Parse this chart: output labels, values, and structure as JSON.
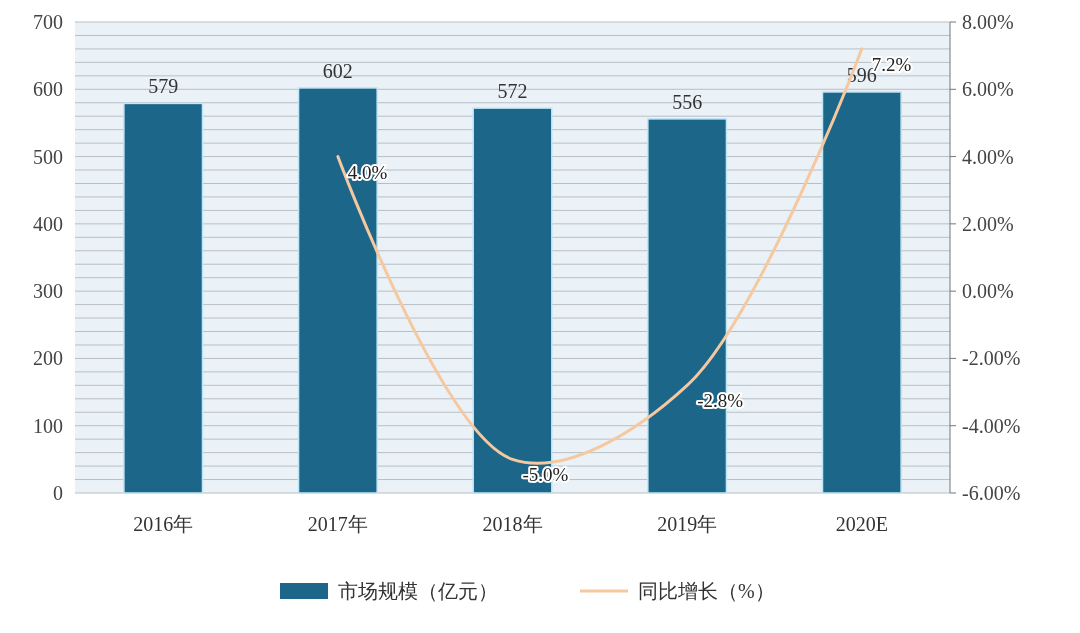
{
  "chart_data": {
    "type": "bar",
    "categories": [
      "2016年",
      "2017年",
      "2018年",
      "2019年",
      "2020E"
    ],
    "series": [
      {
        "name": "市场规模（亿元）",
        "color": "#1b6689",
        "values": [
          579,
          602,
          572,
          556,
          596
        ],
        "value_labels": [
          "579",
          "602",
          "572",
          "556",
          "596"
        ]
      },
      {
        "name": "同比增长（%）",
        "type": "line",
        "axis": "y2",
        "color": "#f5c8a0",
        "values": [
          null,
          4.0,
          -5.0,
          -2.8,
          7.2
        ],
        "value_labels": [
          null,
          "4.0%",
          "-5.0%",
          "-2.8%",
          "7.2%"
        ]
      }
    ],
    "ylim": [
      0,
      700
    ],
    "yticks": [
      0,
      {
        "value": 20,
        "label": null
      },
      {
        "value": 40,
        "label": null
      },
      {
        "value": 60,
        "label": null
      },
      {
        "value": 80,
        "label": null
      },
      100,
      {
        "value": 120,
        "label": null
      },
      {
        "value": 140,
        "label": null
      },
      {
        "value": 160,
        "label": null
      },
      {
        "value": 180,
        "label": null
      },
      200,
      {
        "value": 220,
        "label": null
      },
      {
        "value": 240,
        "label": null
      },
      {
        "value": 260,
        "label": null
      },
      {
        "value": 280,
        "label": null
      },
      300,
      {
        "value": 320,
        "label": null
      },
      {
        "value": 340,
        "label": null
      },
      {
        "value": 360,
        "label": null
      },
      {
        "value": 380,
        "label": null
      },
      400,
      {
        "value": 420,
        "label": null
      },
      {
        "value": 440,
        "label": null
      },
      {
        "value": 460,
        "label": null
      },
      {
        "value": 480,
        "label": null
      },
      500,
      {
        "value": 520,
        "label": null
      },
      {
        "value": 540,
        "label": null
      },
      {
        "value": 560,
        "label": null
      },
      {
        "value": 580,
        "label": null
      },
      600,
      {
        "value": 620,
        "label": null
      },
      {
        "value": 640,
        "label": null
      },
      {
        "value": 660,
        "label": null
      },
      {
        "value": 680,
        "label": null
      },
      700
    ],
    "y2lim": [
      -6,
      8
    ],
    "y2ticks": [
      {
        "value": -6,
        "label": "-6.00%"
      },
      {
        "value": -4,
        "label": "-4.00%"
      },
      {
        "value": -2,
        "label": "-2.00%"
      },
      {
        "value": 0,
        "label": "0.00%"
      },
      {
        "value": 2,
        "label": "2.00%"
      },
      {
        "value": 4,
        "label": "4.00%"
      },
      {
        "value": 6,
        "label": "6.00%"
      },
      {
        "value": 8,
        "label": "8.00%"
      }
    ],
    "grid": "y",
    "legend": "bottom"
  }
}
